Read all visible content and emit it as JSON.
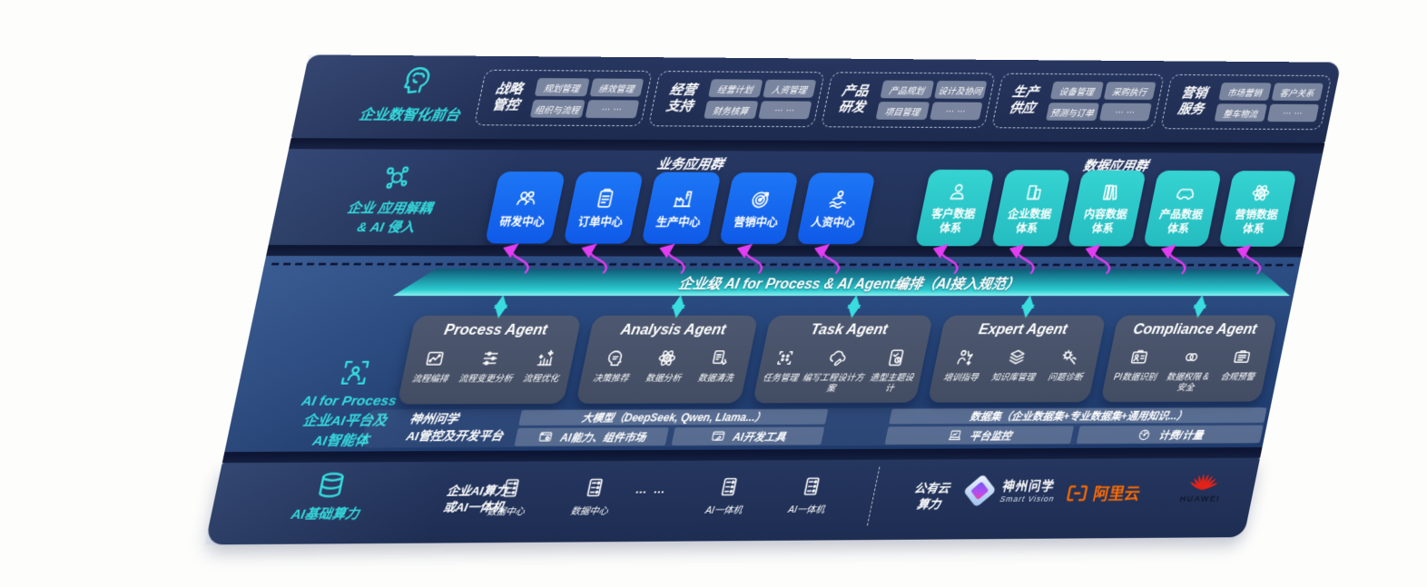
{
  "band1": {
    "label": "企业数智化前台",
    "groups": [
      {
        "l1": "战略",
        "l2": "管控",
        "chips": [
          "规划管理",
          "绩效管理",
          "组织与流程",
          "… …"
        ]
      },
      {
        "l1": "经营",
        "l2": "支持",
        "chips": [
          "经营计划",
          "人资管理",
          "财务核算",
          "… …"
        ]
      },
      {
        "l1": "产品",
        "l2": "研发",
        "chips": [
          "产品规划",
          "设计及协同",
          "项目管理",
          "… …"
        ]
      },
      {
        "l1": "生产",
        "l2": "供应",
        "chips": [
          "设备管理",
          "采购执行",
          "预测与订单",
          "… …"
        ]
      },
      {
        "l1": "营销",
        "l2": "服务",
        "chips": [
          "市场营销",
          "客户关系",
          "整车物流",
          "… …"
        ]
      }
    ]
  },
  "band2": {
    "label1": "企业 应用解耦",
    "label2": "& AI 侵入",
    "business_title": "业务应用群",
    "data_title": "数据应用群",
    "business": [
      "研发中心",
      "订单中心",
      "生产中心",
      "营销中心",
      "人资中心"
    ],
    "data": [
      "客户数据体系",
      "企业数据体系",
      "内容数据体系",
      "产品数据体系",
      "营销数据体系"
    ]
  },
  "banner": "企业级 AI for Process & AI Agent编排（AI接入规范）",
  "band3": {
    "label1": "AI for Process",
    "label2": "企业AI平台及",
    "label3": "AI智能体",
    "agents": [
      {
        "title": "Process Agent",
        "items": [
          "流程编排",
          "流程变更分析",
          "流程优化"
        ]
      },
      {
        "title": "Analysis Agent",
        "items": [
          "决策推荐",
          "数据分析",
          "数据清洗"
        ]
      },
      {
        "title": "Task Agent",
        "items": [
          "任务管理",
          "编写工程设计方案",
          "造型主题设计"
        ]
      },
      {
        "title": "Expert Agent",
        "items": [
          "培训指导",
          "知识库管理",
          "问题诊断"
        ]
      },
      {
        "title": "Compliance Agent",
        "items": [
          "PI数据识别",
          "数据权限 &\n安全",
          "合规预警"
        ]
      }
    ],
    "platform": {
      "l1": "神州问学",
      "l2": "AI管控及开发平台",
      "model_bar": "大模型（DeepSeek, Qwen, Llama...）",
      "cell1": "AI能力、组件市场",
      "cell2": "AI开发工具",
      "dataset_bar": "数据集（企业数据集+专业数据集+通用知识...）",
      "cell3": "平台监控",
      "cell4": "计费/计量"
    }
  },
  "band4": {
    "label": "AI基础算力",
    "compute1": "企业AI算力",
    "compute2": "或AI一体机",
    "nodes": [
      "数据中心",
      "数据中心",
      "… …",
      "AI一体机",
      "AI一体机"
    ],
    "cloud1": "公有云",
    "cloud2": "算力",
    "sv_cn": "神州问学",
    "sv_en": "Smart Vision",
    "aliyun": "阿里云",
    "huawei": "HUAWEI"
  }
}
